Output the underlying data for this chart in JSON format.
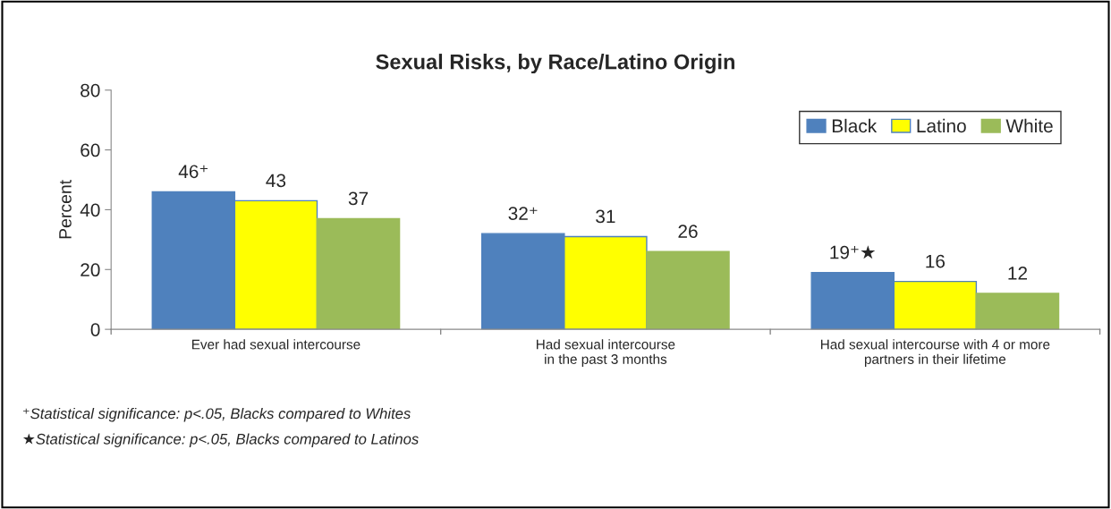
{
  "chart_data": {
    "type": "bar",
    "title": "Sexual Risks, by Race/Latino Origin",
    "ylabel": "Percent",
    "categories": [
      "Ever had sexual intercourse",
      "Had sexual intercourse\nin the past 3 months",
      "Had sexual intercourse with 4 or more\npartners in their lifetime"
    ],
    "series": [
      {
        "name": "Black",
        "color": "#4f81bd",
        "values": [
          46,
          32,
          19
        ],
        "value_labels": [
          "46⁺",
          "32⁺",
          "19⁺★"
        ]
      },
      {
        "name": "Latino",
        "color": "#ffff00",
        "values": [
          43,
          31,
          16
        ],
        "value_labels": [
          "43",
          "31",
          "16"
        ]
      },
      {
        "name": "White",
        "color": "#9bbb59",
        "values": [
          37,
          26,
          12
        ],
        "value_labels": [
          "37",
          "26",
          "12"
        ]
      }
    ],
    "ylim": [
      0,
      80
    ],
    "yticks": [
      0,
      20,
      40,
      60,
      80
    ],
    "grid": false,
    "legend": "top right",
    "annotations": [
      "⁺Statistical significance: p<.05, Blacks compared to Whites",
      "★Statistical significance: p<.05, Blacks compared to Latinos"
    ]
  }
}
